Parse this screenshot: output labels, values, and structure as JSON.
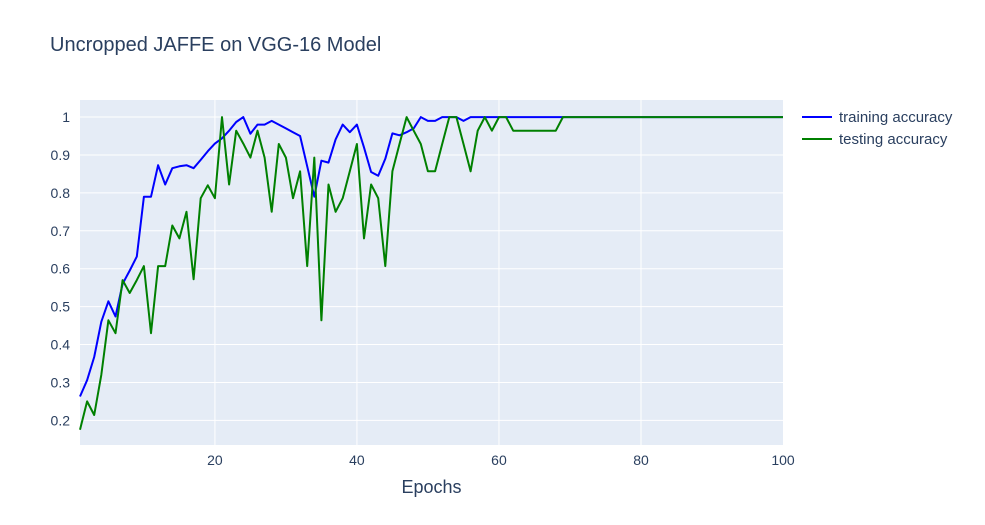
{
  "chart_data": {
    "type": "line",
    "title": "Uncropped JAFFE on VGG-16 Model",
    "xlabel": "Epochs",
    "ylabel": "",
    "xlim": [
      1,
      100
    ],
    "ylim": [
      0.135,
      1.045
    ],
    "x_ticks": [
      20,
      40,
      60,
      80,
      100
    ],
    "y_ticks": [
      0.2,
      0.3,
      0.4,
      0.5,
      0.6,
      0.7,
      0.8,
      0.9,
      1
    ],
    "y_tick_labels": [
      "0.2",
      "0.3",
      "0.4",
      "0.5",
      "0.6",
      "0.7",
      "0.8",
      "0.9",
      "1"
    ],
    "grid": true,
    "legend_position": "top-right",
    "colors": {
      "plot_bg": "#e5ecf6",
      "grid": "#ffffff",
      "text": "#2a3f5f"
    },
    "series": [
      {
        "name": "training accuracy",
        "color": "#0000ff",
        "x": [
          1,
          2,
          3,
          4,
          5,
          6,
          7,
          8,
          9,
          10,
          11,
          12,
          13,
          14,
          15,
          16,
          17,
          18,
          19,
          20,
          21,
          22,
          23,
          24,
          25,
          26,
          27,
          28,
          29,
          30,
          31,
          32,
          33,
          34,
          35,
          36,
          37,
          38,
          39,
          40,
          41,
          42,
          43,
          44,
          45,
          46,
          47,
          48,
          49,
          50,
          51,
          52,
          53,
          54,
          55,
          56,
          57,
          58,
          59,
          60,
          61,
          62,
          63,
          64,
          65,
          66,
          67,
          68,
          69,
          70,
          71,
          72,
          73,
          74,
          75,
          76,
          77,
          78,
          79,
          80,
          81,
          82,
          83,
          84,
          85,
          86,
          87,
          88,
          89,
          90,
          91,
          92,
          93,
          94,
          95,
          96,
          97,
          98,
          99,
          100
        ],
        "y": [
          0.263,
          0.306,
          0.367,
          0.46,
          0.514,
          0.474,
          0.56,
          0.595,
          0.632,
          0.79,
          0.79,
          0.873,
          0.822,
          0.865,
          0.87,
          0.873,
          0.865,
          0.887,
          0.91,
          0.93,
          0.944,
          0.964,
          0.987,
          1.0,
          0.956,
          0.98,
          0.98,
          0.99,
          0.98,
          0.97,
          0.96,
          0.95,
          0.87,
          0.79,
          0.885,
          0.88,
          0.941,
          0.98,
          0.96,
          0.98,
          0.92,
          0.855,
          0.845,
          0.89,
          0.957,
          0.952,
          0.96,
          0.97,
          1.0,
          0.99,
          0.99,
          1.0,
          1.0,
          1.0,
          0.99,
          1.0,
          1.0,
          1.0,
          1.0,
          1.0,
          1.0,
          1.0,
          1.0,
          1.0,
          1.0,
          1.0,
          1.0,
          1.0,
          1.0,
          1.0,
          1.0,
          1.0,
          1.0,
          1.0,
          1.0,
          1.0,
          1.0,
          1.0,
          1.0,
          1.0,
          1.0,
          1.0,
          1.0,
          1.0,
          1.0,
          1.0,
          1.0,
          1.0,
          1.0,
          1.0,
          1.0,
          1.0,
          1.0,
          1.0,
          1.0,
          1.0,
          1.0,
          1.0,
          1.0,
          1.0
        ]
      },
      {
        "name": "testing accuracy",
        "color": "#008000",
        "x": [
          1,
          2,
          3,
          4,
          5,
          6,
          7,
          8,
          9,
          10,
          11,
          12,
          13,
          14,
          15,
          16,
          17,
          18,
          19,
          20,
          21,
          22,
          23,
          24,
          25,
          26,
          27,
          28,
          29,
          30,
          31,
          32,
          33,
          34,
          35,
          36,
          37,
          38,
          39,
          40,
          41,
          42,
          43,
          44,
          45,
          46,
          47,
          48,
          49,
          50,
          51,
          52,
          53,
          54,
          55,
          56,
          57,
          58,
          59,
          60,
          61,
          62,
          63,
          64,
          65,
          66,
          67,
          68,
          69,
          70,
          71,
          72,
          73,
          74,
          75,
          76,
          77,
          78,
          79,
          80,
          81,
          82,
          83,
          84,
          85,
          86,
          87,
          88,
          89,
          90,
          91,
          92,
          93,
          94,
          95,
          96,
          97,
          98,
          99,
          100
        ],
        "y": [
          0.175,
          0.25,
          0.214,
          0.32,
          0.464,
          0.43,
          0.57,
          0.536,
          0.57,
          0.607,
          0.43,
          0.607,
          0.607,
          0.714,
          0.68,
          0.75,
          0.572,
          0.786,
          0.82,
          0.786,
          1.0,
          0.822,
          0.964,
          0.93,
          0.893,
          0.964,
          0.893,
          0.75,
          0.929,
          0.893,
          0.786,
          0.857,
          0.607,
          0.893,
          0.464,
          0.822,
          0.75,
          0.786,
          0.857,
          0.929,
          0.68,
          0.822,
          0.786,
          0.607,
          0.857,
          0.929,
          1.0,
          0.964,
          0.929,
          0.857,
          0.857,
          0.929,
          1.0,
          1.0,
          0.929,
          0.857,
          0.964,
          1.0,
          0.964,
          1.0,
          1.0,
          0.964,
          0.964,
          0.964,
          0.964,
          0.964,
          0.964,
          0.964,
          1.0,
          1.0,
          1.0,
          1.0,
          1.0,
          1.0,
          1.0,
          1.0,
          1.0,
          1.0,
          1.0,
          1.0,
          1.0,
          1.0,
          1.0,
          1.0,
          1.0,
          1.0,
          1.0,
          1.0,
          1.0,
          1.0,
          1.0,
          1.0,
          1.0,
          1.0,
          1.0,
          1.0,
          1.0,
          1.0,
          1.0,
          1.0
        ]
      }
    ]
  }
}
